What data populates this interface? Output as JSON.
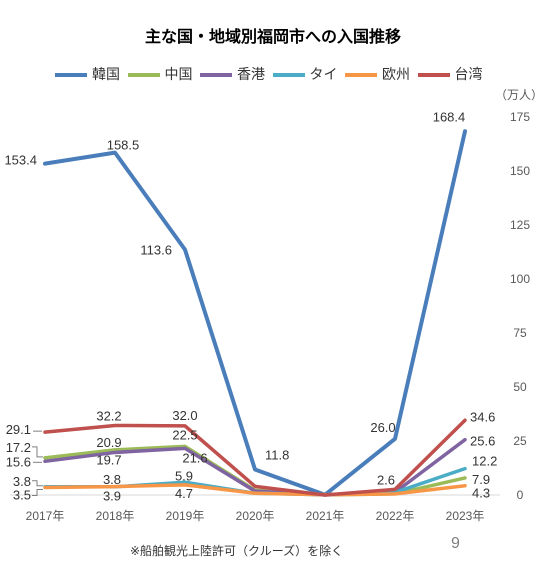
{
  "chart_data": {
    "type": "line",
    "title": "主な国・地域別福岡市への入国推移",
    "ylabel": "（万人）",
    "categories": [
      "2017年",
      "2018年",
      "2019年",
      "2020年",
      "2021年",
      "2022年",
      "2023年"
    ],
    "ylim": [
      0,
      175
    ],
    "yticks": [
      0,
      25,
      50,
      75,
      100,
      125,
      150,
      175
    ],
    "y_axis_position": "right",
    "grid": false,
    "legend_position": "top",
    "series": [
      {
        "name": "韓国",
        "color": "#4a7ebb",
        "values": [
          153.4,
          158.5,
          113.6,
          11.8,
          0.1,
          26.0,
          168.4
        ],
        "labels": [
          "153.4",
          "158.5",
          "113.6",
          "11.8",
          null,
          "26.0",
          "168.4"
        ]
      },
      {
        "name": "中国",
        "color": "#9bbb59",
        "values": [
          17.2,
          20.9,
          22.5,
          2.2,
          0.1,
          0.5,
          7.9
        ],
        "labels": [
          "17.2",
          "20.9",
          "22.5",
          null,
          null,
          null,
          "7.9"
        ]
      },
      {
        "name": "香港",
        "color": "#8064a2",
        "values": [
          15.6,
          19.7,
          21.6,
          1.8,
          0.0,
          1.2,
          25.6
        ],
        "labels": [
          "15.6",
          "19.7",
          "21.6",
          null,
          null,
          null,
          "25.6"
        ]
      },
      {
        "name": "タイ",
        "color": "#4bacc6",
        "values": [
          3.8,
          3.8,
          5.9,
          0.8,
          0.1,
          1.2,
          12.2
        ],
        "labels": [
          "3.8",
          "3.8",
          "5.9",
          null,
          null,
          null,
          "12.2"
        ]
      },
      {
        "name": "欧州",
        "color": "#f79646",
        "values": [
          3.5,
          3.9,
          4.7,
          0.8,
          0.1,
          0.5,
          4.3
        ],
        "labels": [
          "3.5",
          "3.9",
          "4.7",
          null,
          null,
          null,
          "4.3"
        ]
      },
      {
        "name": "台湾",
        "color": "#c0504d",
        "values": [
          29.1,
          32.2,
          32.0,
          4.0,
          0.0,
          2.6,
          34.6
        ],
        "labels": [
          "29.1",
          "32.2",
          "32.0",
          null,
          null,
          "2.6",
          "34.6"
        ]
      }
    ]
  },
  "footnote": "※船舶観光上陸許可（クルーズ）を除く",
  "page_number": "9"
}
